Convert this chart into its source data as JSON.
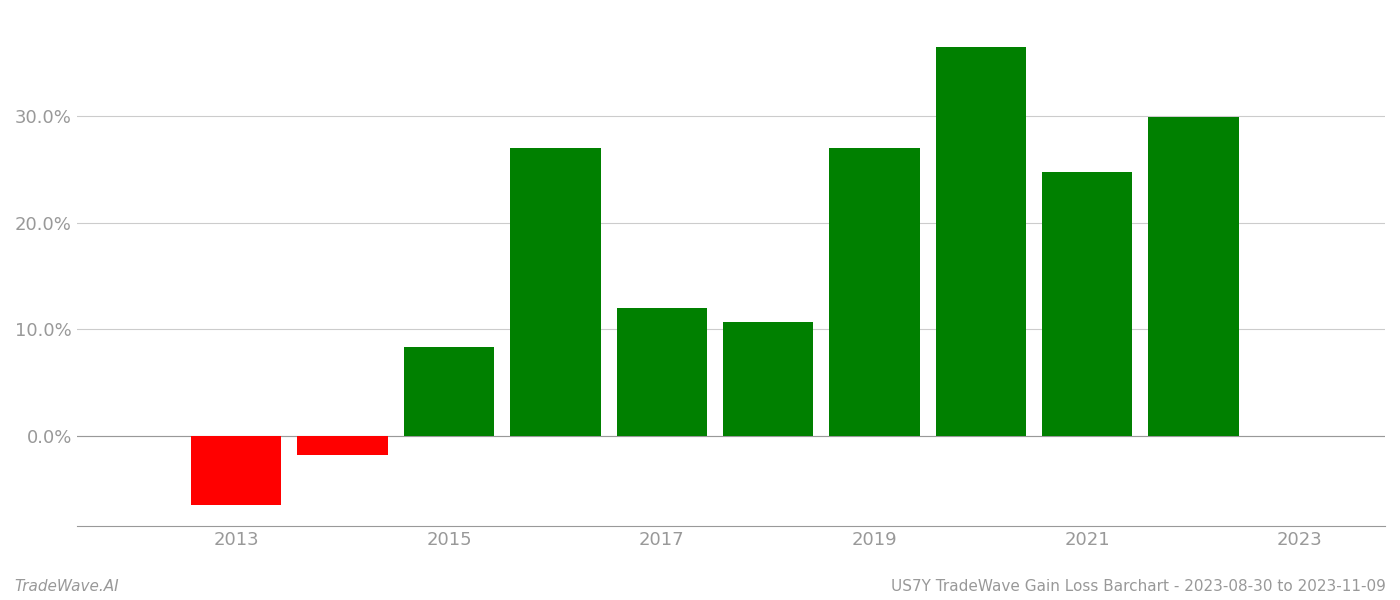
{
  "years": [
    2013,
    2014,
    2015,
    2016,
    2017,
    2018,
    2019,
    2020,
    2021,
    2022
  ],
  "values": [
    -0.065,
    -0.018,
    0.083,
    0.27,
    0.12,
    0.107,
    0.27,
    0.365,
    0.248,
    0.299
  ],
  "bar_colors": [
    "#ff0000",
    "#ff0000",
    "#008000",
    "#008000",
    "#008000",
    "#008000",
    "#008000",
    "#008000",
    "#008000",
    "#008000"
  ],
  "footer_left": "TradeWave.AI",
  "footer_right": "US7Y TradeWave Gain Loss Barchart - 2023-08-30 to 2023-11-09",
  "ylim": [
    -0.085,
    0.395
  ],
  "yticks": [
    0.0,
    0.1,
    0.2,
    0.3
  ],
  "background_color": "#ffffff",
  "grid_color": "#cccccc",
  "axis_color": "#999999",
  "bar_width": 0.85,
  "xlim": [
    2011.5,
    2023.8
  ],
  "xticks": [
    2013,
    2015,
    2017,
    2019,
    2021,
    2023
  ]
}
